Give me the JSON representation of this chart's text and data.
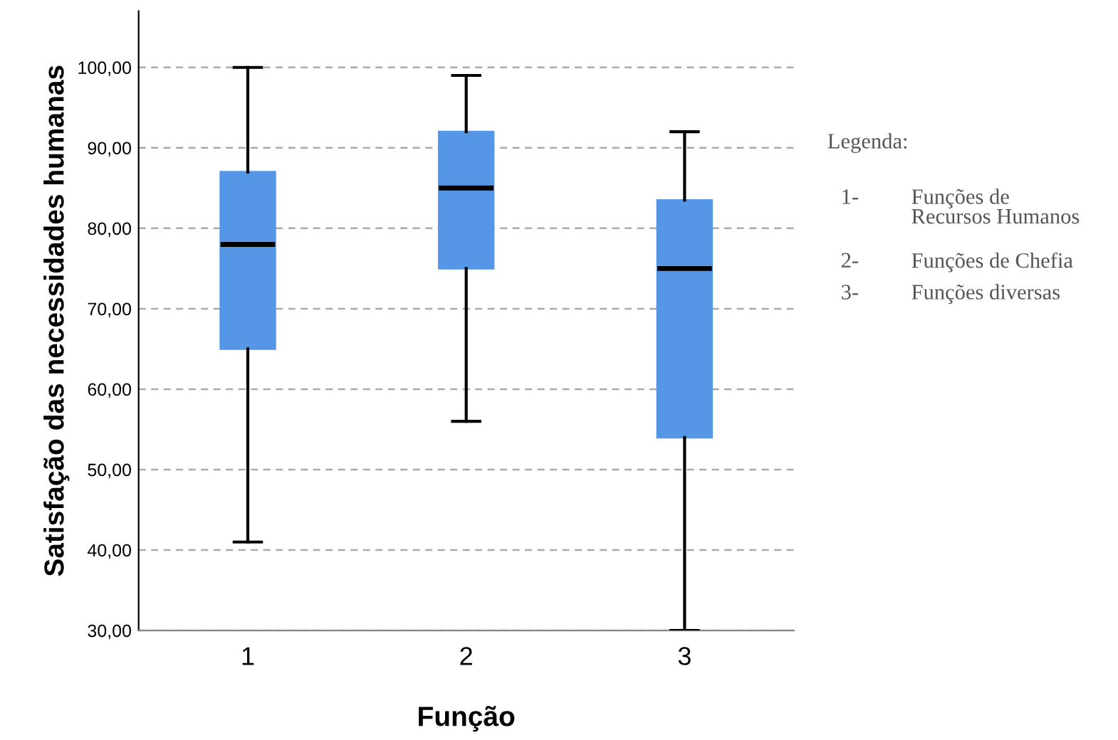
{
  "chart_data": {
    "type": "box",
    "xlabel": "Função",
    "ylabel": "Satisfação das necessidades humanas",
    "categories": [
      "1",
      "2",
      "3"
    ],
    "boxes": [
      {
        "low": 41,
        "q1": 65,
        "median": 78,
        "q3": 87,
        "high": 100
      },
      {
        "low": 56,
        "q1": 75,
        "median": 85,
        "q3": 92,
        "high": 99
      },
      {
        "low": 30,
        "q1": 54,
        "median": 75,
        "q3": 83.5,
        "high": 92
      }
    ],
    "color": "#5596e6",
    "ylim": [
      30,
      107
    ],
    "yticks": [
      {
        "value": 30,
        "label": "30,00"
      },
      {
        "value": 40,
        "label": "40,00"
      },
      {
        "value": 50,
        "label": "50,00"
      },
      {
        "value": 60,
        "label": "60,00"
      },
      {
        "value": 70,
        "label": "70,00"
      },
      {
        "value": 80,
        "label": "80,00"
      },
      {
        "value": 90,
        "label": "90,00"
      },
      {
        "value": 100,
        "label": "100,00"
      }
    ],
    "grid": "y",
    "annotations": [
      "Legenda:",
      "1- Funções de\nRecursos Humanos",
      "2- Funções de Chefia",
      "3- Funções diversas"
    ]
  }
}
